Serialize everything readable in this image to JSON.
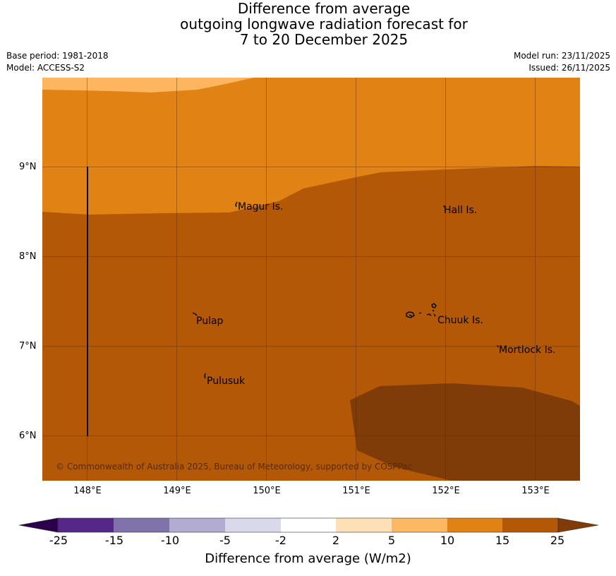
{
  "title": {
    "line1": "Difference from average",
    "line2": "outgoing longwave radiation forecast for",
    "line3": "7 to 20 December 2025"
  },
  "meta": {
    "base_period": "Base period: 1981-2018",
    "model": "Model: ACCESS-S2",
    "model_run": "Model run: 23/11/2025",
    "issued": "Issued: 26/11/2025"
  },
  "map": {
    "lon_range": [
      147.5,
      153.5
    ],
    "lat_range": [
      5.5,
      10.0
    ],
    "lat_ticks": [
      {
        "value": 9,
        "label": "9°N"
      },
      {
        "value": 8,
        "label": "8°N"
      },
      {
        "value": 7,
        "label": "7°N"
      },
      {
        "value": 6,
        "label": "6°N"
      }
    ],
    "lon_ticks": [
      {
        "value": 148,
        "label": "148°E"
      },
      {
        "value": 149,
        "label": "149°E"
      },
      {
        "value": 150,
        "label": "150°E"
      },
      {
        "value": 151,
        "label": "151°E"
      },
      {
        "value": 152,
        "label": "152°E"
      },
      {
        "value": 153,
        "label": "153°E"
      }
    ],
    "places": [
      {
        "name": "Magur Is.",
        "lon": 149.7,
        "lat": 8.55
      },
      {
        "name": "Hall Is.",
        "lon": 151.97,
        "lat": 8.52
      },
      {
        "name": "Pulap",
        "lon": 149.2,
        "lat": 7.28
      },
      {
        "name": "Chuuk Is.",
        "lon": 151.9,
        "lat": 7.29
      },
      {
        "name": "Mortlock Is.",
        "lon": 152.6,
        "lat": 6.95
      },
      {
        "name": "Pulusuk",
        "lon": 149.32,
        "lat": 6.61
      }
    ],
    "copyright": "© Commonwealth of Australia 2025, Bureau of Meteorology, supported by COSPPac",
    "fill_colors": {
      "5_to_10": "#fdb55f",
      "10_to_15": "#e08214",
      "15_to_25": "#b35806",
      "above_25": "#7f3b08"
    }
  },
  "colorbar": {
    "title": "Difference from average (W/m2)",
    "boundaries": [
      "-25",
      "-15",
      "-10",
      "-5",
      "-2",
      "2",
      "5",
      "10",
      "15",
      "25"
    ],
    "colors": [
      "#2d004b",
      "#542788",
      "#8073ac",
      "#b2abd2",
      "#d8daeb",
      "#ffffff",
      "#fee0b6",
      "#fdb863",
      "#e08214",
      "#b35806",
      "#7f3b08"
    ]
  }
}
